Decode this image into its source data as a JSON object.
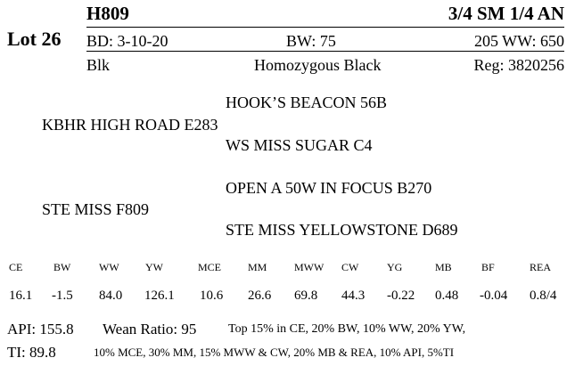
{
  "header": {
    "lot": "Lot 26",
    "id": "H809",
    "breed": "3/4 SM 1/4 AN"
  },
  "details": {
    "birth_date": "BD: 3-10-20",
    "birth_weight": "BW: 75",
    "weaning_weight": "205 WW: 650",
    "color": "Blk",
    "genotype": "Homozygous Black",
    "registration": "Reg: 3820256"
  },
  "pedigree": {
    "sire_sire": "HOOK’S BEACON 56B",
    "sire": "KBHR HIGH ROAD E283",
    "sire_dam": "WS MISS SUGAR C4",
    "dam_sire": "OPEN A 50W IN FOCUS B270",
    "dam": "STE MISS F809",
    "dam_dam": "STE MISS YELLOWSTONE D689"
  },
  "epd": {
    "headers": [
      "CE",
      "BW",
      "WW",
      "YW",
      "MCE",
      "MM",
      "MWW",
      "CW",
      "YG",
      "MB",
      "BF",
      "REA"
    ],
    "values": [
      "16.1",
      "-1.5",
      "84.0",
      "126.1",
      "10.6",
      "26.6",
      "69.8",
      "44.3",
      "-0.22",
      "0.48",
      "-0.04",
      "0.8/4"
    ]
  },
  "indexes": {
    "api": "API: 155.8",
    "wean_ratio": "Wean Ratio: 95",
    "rankings_line1": "Top 15% in CE,  20% BW,  10% WW,  20% YW,",
    "ti": "TI: 89.8",
    "rankings_line2": "10% MCE,  30% MM,  15% MWW & CW,  20% MB & REA,  10% API,  5%TI"
  }
}
